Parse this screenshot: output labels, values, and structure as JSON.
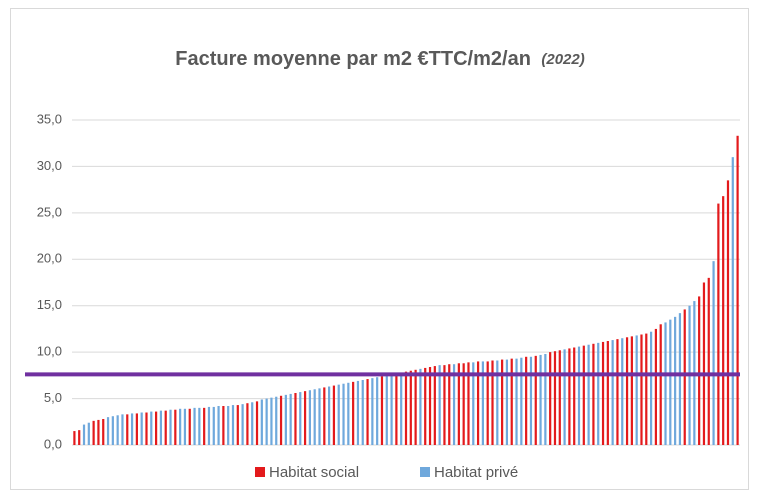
{
  "chart_data": {
    "type": "bar",
    "title": "Facture moyenne par m2 €TTC/m2/an",
    "subtitle": "(2022)",
    "series": [
      {
        "name": "Habitat social",
        "color": "#e31a1c",
        "values": [
          1.5,
          1.6,
          null,
          null,
          2.6,
          2.7,
          2.8,
          null,
          null,
          null,
          null,
          3.3,
          null,
          3.4,
          null,
          3.5,
          null,
          3.6,
          null,
          3.7,
          null,
          3.8,
          null,
          null,
          3.9,
          null,
          null,
          4.0,
          null,
          null,
          null,
          4.2,
          null,
          null,
          4.3,
          null,
          4.5,
          null,
          4.7,
          null,
          null,
          null,
          null,
          5.3,
          null,
          null,
          5.6,
          null,
          5.8,
          null,
          null,
          null,
          6.2,
          null,
          6.4,
          null,
          null,
          null,
          6.8,
          null,
          null,
          7.1,
          null,
          null,
          7.4,
          null,
          null,
          7.7,
          null,
          7.9,
          8.0,
          8.1,
          null,
          8.3,
          8.4,
          8.5,
          null,
          8.6,
          8.7,
          null,
          8.8,
          8.8,
          8.9,
          null,
          9.0,
          null,
          9.0,
          9.1,
          null,
          9.2,
          null,
          9.3,
          null,
          null,
          9.5,
          null,
          9.6,
          null,
          null,
          10.0,
          10.1,
          10.2,
          null,
          10.4,
          10.5,
          null,
          10.7,
          null,
          10.9,
          null,
          11.1,
          11.2,
          null,
          11.4,
          null,
          11.6,
          11.7,
          null,
          11.9,
          12.0,
          null,
          12.5,
          13.0,
          null,
          null,
          null,
          null,
          14.6,
          null,
          null,
          16.0,
          17.5,
          18.0,
          null,
          26.0,
          26.8,
          28.5,
          null,
          33.3
        ]
      },
      {
        "name": "Habitat privé",
        "color": "#6fa8dc",
        "values": [
          null,
          null,
          2.2,
          2.4,
          null,
          null,
          null,
          3.0,
          3.1,
          3.2,
          3.3,
          null,
          3.4,
          null,
          3.5,
          null,
          3.6,
          null,
          3.7,
          null,
          3.8,
          null,
          3.9,
          3.9,
          null,
          4.0,
          4.0,
          null,
          4.1,
          4.1,
          4.2,
          null,
          4.2,
          4.3,
          null,
          4.4,
          null,
          4.6,
          null,
          4.9,
          5.0,
          5.1,
          5.2,
          null,
          5.4,
          5.5,
          null,
          5.7,
          null,
          5.9,
          6.0,
          6.1,
          null,
          6.3,
          null,
          6.5,
          6.6,
          6.7,
          null,
          6.9,
          7.0,
          null,
          7.2,
          7.3,
          null,
          7.5,
          7.6,
          null,
          7.8,
          null,
          null,
          null,
          8.2,
          null,
          null,
          null,
          8.6,
          null,
          null,
          8.7,
          null,
          null,
          null,
          8.9,
          null,
          9.0,
          null,
          null,
          9.1,
          null,
          9.2,
          null,
          9.3,
          9.4,
          null,
          9.5,
          null,
          9.7,
          9.8,
          null,
          null,
          null,
          10.3,
          null,
          null,
          10.6,
          null,
          10.8,
          null,
          11.0,
          null,
          null,
          11.3,
          null,
          11.5,
          null,
          null,
          11.8,
          null,
          null,
          12.2,
          null,
          null,
          13.2,
          13.5,
          13.8,
          14.2,
          null,
          15.0,
          15.5,
          null,
          null,
          null,
          19.8,
          null,
          null,
          null,
          31.0,
          null
        ]
      }
    ],
    "ylim": [
      0,
      35
    ],
    "yticks": [
      {
        "value": 0,
        "label": "0,0"
      },
      {
        "value": 5,
        "label": "5,0"
      },
      {
        "value": 10,
        "label": "10,0"
      },
      {
        "value": 15,
        "label": "15,0"
      },
      {
        "value": 20,
        "label": "20,0"
      },
      {
        "value": 25,
        "label": "25,0"
      },
      {
        "value": 30,
        "label": "30,0"
      },
      {
        "value": 35,
        "label": "35,0"
      }
    ],
    "grid": true,
    "reference_line": {
      "value": 7.6,
      "color": "#7030a0"
    },
    "legend": "bottom"
  }
}
